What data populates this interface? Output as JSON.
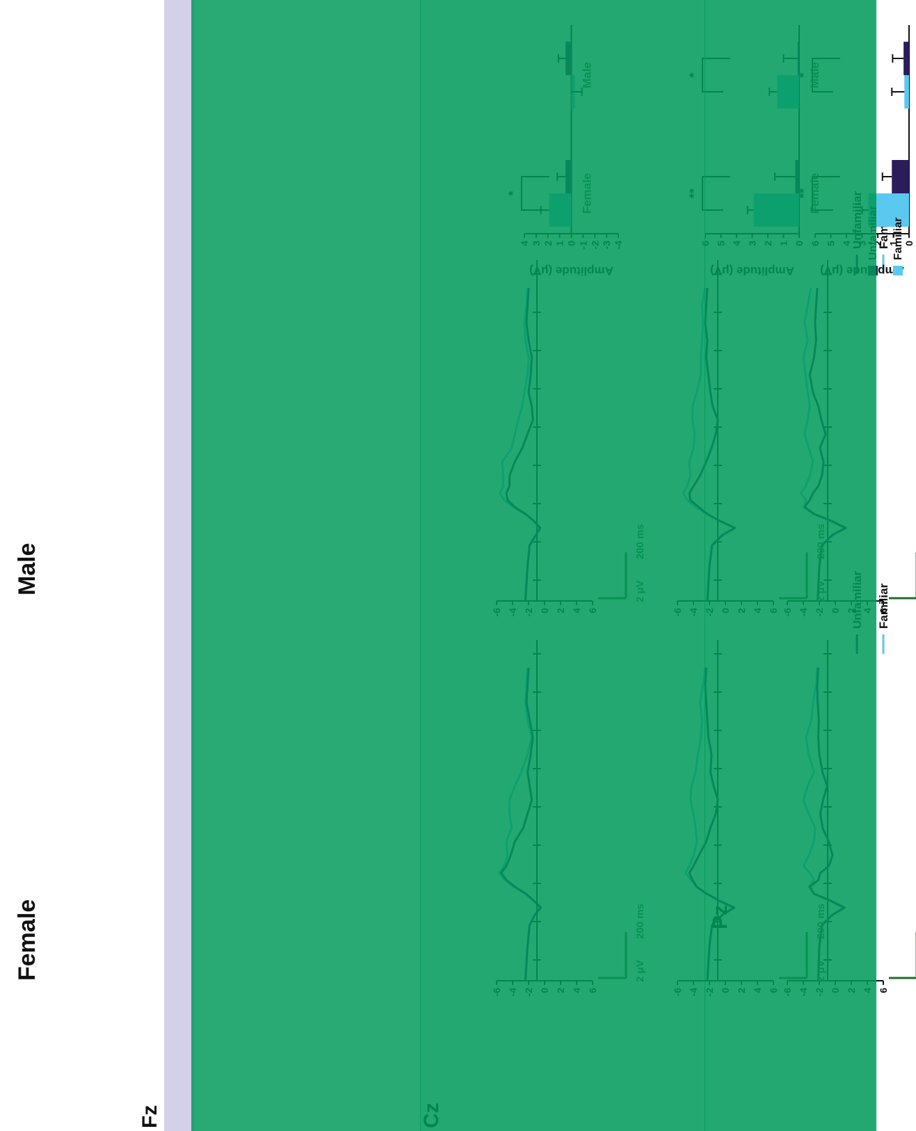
{
  "colors": {
    "familiar": "#5bc8f0",
    "unfamiliar": "#2b1d5c",
    "overlay_green": "#009a5a",
    "overlay_lavender": "#c8c3e3",
    "axis_green": "#1f6b2e"
  },
  "figure": {
    "col_labels": [
      "Female",
      "Male"
    ],
    "row_labels": [
      "Fz",
      "Cz",
      "Pz"
    ],
    "scale_uv": "2 μV",
    "scale_ms": "200 ms",
    "bar_y_label": "Amplitude (μV)",
    "legend_line": [
      "Familiar",
      "Unfamiliar"
    ],
    "legend_bar": [
      "Familiar",
      "Unfamiliar"
    ]
  },
  "chart_data": [
    {
      "type": "line",
      "title": "Female",
      "row": "Fz",
      "ylim": [
        -6,
        6
      ],
      "yticks": [
        "-6",
        "-4",
        "-2",
        "0",
        "2",
        "4",
        "6"
      ],
      "inverted_y": true,
      "series": [
        {
          "name": "Familiar",
          "t": [
            -100,
            0,
            60,
            90,
            110,
            130,
            150,
            170,
            190,
            210,
            230,
            260,
            300,
            340,
            380,
            420,
            460,
            500,
            550,
            600,
            650,
            700,
            750,
            800
          ],
          "y": [
            0.2,
            0,
            -0.5,
            -2.5,
            -4.5,
            -2,
            1,
            2,
            1,
            1.8,
            3,
            2,
            1,
            0.8,
            2,
            3,
            2.2,
            1,
            2,
            2.5,
            1.5,
            1.2,
            0.6,
            0.4
          ]
        },
        {
          "name": "Unfamiliar",
          "t": [
            -100,
            0,
            60,
            90,
            110,
            130,
            150,
            170,
            190,
            210,
            230,
            260,
            300,
            340,
            380,
            420,
            460,
            500,
            550,
            600,
            650,
            700,
            750,
            800
          ],
          "y": [
            0.2,
            0,
            -0.5,
            -2.5,
            -4.8,
            -2.2,
            1,
            1.8,
            0.2,
            -0.2,
            -1.8,
            -2.5,
            -1.8,
            -0.6,
            -0.2,
            -0.7,
            -1.5,
            -0.6,
            0,
            0.2,
            0.1,
            0.3,
            0.4,
            0.2
          ]
        }
      ]
    },
    {
      "type": "line",
      "title": "Male",
      "row": "Fz",
      "ylim": [
        -6,
        6
      ],
      "yticks": [
        "-6",
        "-4",
        "-2",
        "0",
        "2",
        "4",
        "6"
      ],
      "inverted_y": true,
      "series": [
        {
          "name": "Familiar",
          "t": [
            -100,
            0,
            60,
            90,
            110,
            130,
            150,
            170,
            190,
            210,
            230,
            260,
            300,
            340,
            380,
            420,
            460,
            500,
            550,
            600,
            650,
            700,
            750,
            800
          ],
          "y": [
            0.3,
            0,
            -0.5,
            -2.5,
            -4.8,
            -2,
            1,
            3,
            2.5,
            3.5,
            2.6,
            1.8,
            1.2,
            2,
            2.8,
            2.2,
            1.8,
            2.2,
            2.6,
            3,
            2.2,
            2.8,
            2.2,
            1.6
          ]
        },
        {
          "name": "Unfamiliar",
          "t": [
            -100,
            0,
            60,
            90,
            110,
            130,
            150,
            170,
            190,
            210,
            230,
            260,
            300,
            340,
            380,
            420,
            460,
            500,
            550,
            600,
            650,
            700,
            750,
            800
          ],
          "y": [
            0.3,
            0,
            -0.5,
            -2.5,
            -5,
            -2.4,
            1,
            2.8,
            1.8,
            1.2,
            0.2,
            -0.5,
            -0.8,
            -0.1,
            -1.2,
            -0.4,
            0.2,
            1.2,
            1.8,
            1,
            0.6,
            0.8,
            0.6,
            0.4
          ]
        }
      ]
    },
    {
      "type": "line",
      "title": "Female",
      "row": "Cz",
      "ylim": [
        -6,
        6
      ],
      "yticks": [
        "-6",
        "-4",
        "-2",
        "0",
        "2",
        "4",
        "6"
      ],
      "inverted_y": true,
      "series": [
        {
          "name": "Familiar",
          "t": [
            -100,
            0,
            60,
            90,
            110,
            130,
            150,
            170,
            190,
            210,
            230,
            260,
            300,
            340,
            380,
            420,
            460,
            500,
            550,
            600,
            650,
            700,
            750,
            800
          ],
          "y": [
            0.4,
            0,
            -0.5,
            -2.5,
            -4.5,
            -1.8,
            0.5,
            2.5,
            3.5,
            4.5,
            3.8,
            3,
            2.4,
            2.6,
            3,
            3.6,
            3.4,
            2.6,
            2.2,
            1.6,
            1.4,
            1.8,
            1.2,
            0.8
          ]
        },
        {
          "name": "Unfamiliar",
          "t": [
            -100,
            0,
            60,
            90,
            110,
            130,
            150,
            170,
            190,
            210,
            230,
            260,
            300,
            340,
            380,
            420,
            460,
            500,
            550,
            600,
            650,
            700,
            750,
            800
          ],
          "y": [
            0.4,
            0,
            -0.5,
            -2.5,
            -4.7,
            -1.9,
            0.5,
            2.4,
            3.2,
            3.8,
            3,
            2,
            0.6,
            -0.2,
            -1.2,
            -1.6,
            -0.8,
            -0.2,
            -0.4,
            0.2,
            0.4,
            0.6,
            0.8,
            0.6
          ]
        }
      ]
    },
    {
      "type": "line",
      "title": "Male",
      "row": "Cz",
      "ylim": [
        -6,
        6
      ],
      "yticks": [
        "-6",
        "-4",
        "-2",
        "0",
        "2",
        "4",
        "6"
      ],
      "inverted_y": true,
      "series": [
        {
          "name": "Familiar",
          "t": [
            -100,
            0,
            60,
            90,
            110,
            130,
            150,
            170,
            190,
            210,
            230,
            260,
            300,
            340,
            380,
            420,
            460,
            500,
            550,
            600,
            650,
            700,
            750,
            800
          ],
          "y": [
            0.4,
            0,
            -0.5,
            -2.5,
            -4.8,
            -2,
            0.5,
            2.6,
            4.2,
            5,
            4.2,
            3.6,
            3.8,
            3,
            2.8,
            3.2,
            3.2,
            2.4,
            1.6,
            1.6,
            1.4,
            1.2,
            1.4,
            0.8
          ]
        },
        {
          "name": "Unfamiliar",
          "t": [
            -100,
            0,
            60,
            90,
            110,
            130,
            150,
            170,
            190,
            210,
            230,
            260,
            300,
            340,
            380,
            420,
            460,
            500,
            550,
            600,
            650,
            700,
            750,
            800
          ],
          "y": [
            0.4,
            0,
            -0.5,
            -2.5,
            -4.8,
            -2,
            0.4,
            2,
            3.6,
            3.8,
            3,
            1.8,
            0.6,
            -0.4,
            -1.2,
            -1.6,
            -0.6,
            -0.2,
            0.2,
            0.6,
            0.4,
            0.8,
            0.6,
            0.4
          ]
        }
      ]
    },
    {
      "type": "line",
      "title": "Female",
      "row": "Pz",
      "ylim": [
        -6,
        6
      ],
      "yticks": [
        "-6",
        "-4",
        "-2",
        "0",
        "2",
        "4",
        "6"
      ],
      "inverted_y": true,
      "series": [
        {
          "name": "Familiar",
          "t": [
            -100,
            0,
            60,
            90,
            110,
            130,
            150,
            170,
            190,
            210,
            230,
            260,
            300,
            340,
            380,
            420,
            460,
            500,
            550,
            600,
            650,
            700,
            750,
            800
          ],
          "y": [
            0.6,
            0.2,
            -0.2,
            -1.2,
            -2.4,
            -1,
            0.5,
            2.8,
            4.5,
            5.6,
            4.6,
            4,
            4.2,
            3.2,
            3.6,
            3.6,
            2.6,
            1.4,
            0.2,
            -0.6,
            0.2,
            0.6,
            0.4,
            0.2
          ]
        },
        {
          "name": "Unfamiliar",
          "t": [
            -100,
            0,
            60,
            90,
            110,
            130,
            150,
            170,
            190,
            210,
            230,
            260,
            300,
            340,
            380,
            420,
            460,
            500,
            550,
            600,
            650,
            700,
            750,
            800
          ],
          "y": [
            0.6,
            0.2,
            -0.2,
            -1.2,
            -2.3,
            -1,
            0.5,
            2.6,
            4.2,
            5.2,
            4.2,
            3.4,
            2.6,
            1,
            0.2,
            -0.6,
            -0.2,
            0.2,
            -0.4,
            -0.8,
            -0.2,
            0.4,
            0.2,
            0
          ]
        }
      ]
    },
    {
      "type": "line",
      "title": "Male",
      "row": "Pz",
      "ylim": [
        -6,
        6
      ],
      "yticks": [
        "-6",
        "-4",
        "-2",
        "0",
        "2",
        "4",
        "6"
      ],
      "inverted_y": true,
      "series": [
        {
          "name": "Familiar",
          "t": [
            -100,
            0,
            60,
            90,
            110,
            130,
            150,
            170,
            190,
            210,
            230,
            260,
            300,
            340,
            380,
            420,
            460,
            500,
            550,
            600,
            650,
            700,
            750,
            800
          ],
          "y": [
            0.6,
            0.2,
            -0.2,
            -1.4,
            -2.2,
            -1,
            0.6,
            3,
            4.6,
            5.4,
            4.8,
            4.8,
            5,
            3.2,
            2.6,
            2,
            1.2,
            0.8,
            0.2,
            0,
            0.6,
            0.8,
            0.4,
            0.2
          ]
        },
        {
          "name": "Unfamiliar",
          "t": [
            -100,
            0,
            60,
            90,
            110,
            130,
            150,
            170,
            190,
            210,
            230,
            260,
            300,
            340,
            380,
            420,
            460,
            500,
            550,
            600,
            650,
            700,
            750,
            800
          ],
          "y": [
            0.6,
            0.2,
            -0.2,
            -1.4,
            -2.2,
            -1,
            0.6,
            2.6,
            4,
            4.2,
            3.6,
            3.6,
            2.6,
            1.2,
            0.2,
            -0.8,
            -0.6,
            0,
            -0.4,
            -0.6,
            0,
            0.4,
            0.2,
            0
          ]
        }
      ]
    },
    {
      "type": "bar",
      "row": "Fz",
      "ylabel": "Amplitude (μV)",
      "ylim": [
        0,
        6
      ],
      "yticks": [
        "0",
        "1",
        "2",
        "3",
        "4",
        "5",
        "6"
      ],
      "categories": [
        "Female",
        "Male"
      ],
      "series": [
        {
          "name": "Familiar",
          "values": [
            2.6,
            0.3
          ],
          "errors": [
            0.4,
            0.8
          ]
        },
        {
          "name": "Unfamiliar",
          "values": [
            1.1,
            0.35
          ],
          "errors": [
            0.6,
            0.7
          ]
        }
      ],
      "significance": [
        {
          "group": "Female",
          "label": "**"
        },
        {
          "group": "Male",
          "label": "*"
        }
      ]
    },
    {
      "type": "bar",
      "row": "Cz",
      "ylabel": "Amplitude (μV)",
      "ylim": [
        0,
        6
      ],
      "yticks": [
        "0",
        "1",
        "2",
        "3",
        "4",
        "5",
        "6"
      ],
      "categories": [
        "Female",
        "Male"
      ],
      "series": [
        {
          "name": "Familiar",
          "values": [
            2.9,
            1.4
          ],
          "errors": [
            0.4,
            0.5
          ]
        },
        {
          "name": "Unfamiliar",
          "values": [
            0.25,
            0.1
          ],
          "errors": [
            1.3,
            0.9
          ]
        }
      ],
      "significance": [
        {
          "group": "Female",
          "label": "**"
        },
        {
          "group": "Male",
          "label": "*"
        }
      ]
    },
    {
      "type": "bar",
      "row": "Pz",
      "ylabel": "Amplitude (μV)",
      "ylim": [
        -4,
        4
      ],
      "yticks": [
        "-4",
        "-3",
        "-2",
        "-1",
        "0",
        "1",
        "2",
        "3",
        "4"
      ],
      "categories": [
        "Female",
        "Male"
      ],
      "series": [
        {
          "name": "Familiar",
          "values": [
            1.9,
            -0.3
          ],
          "errors": [
            0.7,
            0.6
          ]
        },
        {
          "name": "Unfamiliar",
          "values": [
            0.5,
            0.5
          ],
          "errors": [
            0.7,
            0.6
          ]
        }
      ],
      "significance": [
        {
          "group": "Female",
          "label": "*"
        }
      ]
    }
  ]
}
